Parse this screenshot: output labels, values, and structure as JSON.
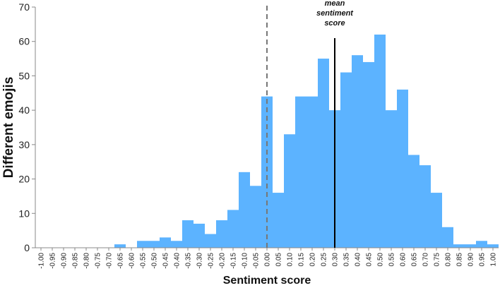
{
  "chart_data": {
    "type": "bar",
    "title": "",
    "xlabel": "Sentiment score",
    "ylabel": "Different emojis",
    "ylim": [
      0,
      70
    ],
    "yticks": [
      0,
      10,
      20,
      30,
      40,
      50,
      60,
      70
    ],
    "categories": [
      "-1.00",
      "-0.95",
      "-0.90",
      "-0.85",
      "-0.80",
      "-0.75",
      "-0.70",
      "-0.65",
      "-0.60",
      "-0.55",
      "-0.50",
      "-0.45",
      "-0.40",
      "-0.35",
      "-0.30",
      "-0.25",
      "-0.20",
      "-0.15",
      "-0.10",
      "-0.05",
      "0.00",
      "0.05",
      "0.10",
      "0.15",
      "0.20",
      "0.25",
      "0.30",
      "0.35",
      "0.40",
      "0.45",
      "0.50",
      "0.55",
      "0.60",
      "0.65",
      "0.70",
      "0.75",
      "0.80",
      "0.85",
      "0.90",
      "0.95",
      "1.00"
    ],
    "values": [
      0,
      0,
      0,
      0,
      0,
      0,
      0,
      1,
      0,
      2,
      2,
      3,
      2,
      8,
      7,
      4,
      8,
      11,
      22,
      18,
      44,
      16,
      33,
      44,
      44,
      55,
      40,
      51,
      56,
      54,
      62,
      40,
      46,
      27,
      24,
      16,
      6,
      1,
      1,
      2,
      1
    ],
    "bar_color": "#5cb3ff",
    "vlines": [
      {
        "x": 0.0,
        "style": "dashed",
        "color": "#777777"
      },
      {
        "x": 0.3,
        "style": "solid",
        "color": "#000000",
        "label_lines": [
          "mean",
          "sentiment",
          "score"
        ]
      }
    ]
  }
}
